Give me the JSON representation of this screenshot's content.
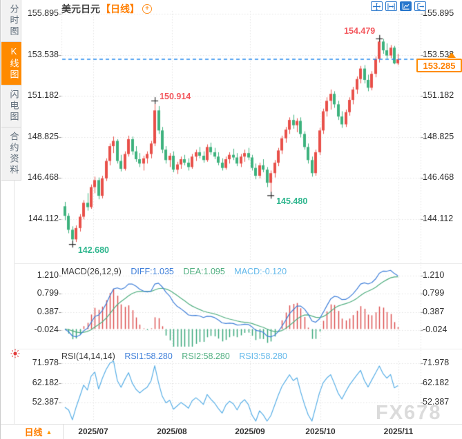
{
  "title": {
    "symbol": "美元日元",
    "period": "【日线】"
  },
  "toolbar": {
    "icons": [
      {
        "name": "crosshair-move-icon",
        "active": false
      },
      {
        "name": "axis-range-icon",
        "active": false
      },
      {
        "name": "chart-panel-icon",
        "active": true
      },
      {
        "name": "exit-chart-icon",
        "active": false
      }
    ]
  },
  "sidebar": {
    "items": [
      {
        "label": "分时图",
        "active": false
      },
      {
        "label": "K线图",
        "active": true
      },
      {
        "label": "闪电图",
        "active": false
      },
      {
        "label": "合约资料",
        "active": false
      }
    ]
  },
  "bottom_bar": {
    "period_label": "日线",
    "arrow": "▲",
    "dates": [
      "2025/07",
      "2025/08",
      "2025/09",
      "2025/10",
      "2025/11"
    ]
  },
  "price_tag": {
    "value": "153.285"
  },
  "watermark": "FX678",
  "colors": {
    "up": "#e8504a",
    "down": "#3eb27e",
    "hist_up": "#dd5252",
    "hist_down": "#3aa87c",
    "diff_line": "#3f7fd9",
    "dea_line": "#4fae7f",
    "rsi_line": "#57aee6",
    "grid": "#e2e2e2",
    "tick": "#999999",
    "dashed_price_line": "#2288ee",
    "accent": "#ff7e00",
    "cross_marker": "#222222"
  },
  "chart_data": [
    {
      "type": "candlestick",
      "title": "美元日元 日线 (USD/JPY daily)",
      "y_ticks": [
        "155.895",
        "153.538",
        "151.182",
        "148.825",
        "146.468",
        "144.112"
      ],
      "x_labels": [
        "2025/07",
        "2025/08",
        "2025/09",
        "2025/10",
        "2025/11"
      ],
      "current_price": "153.285",
      "annotations": [
        {
          "label": "154.479",
          "candle": 84,
          "at": "high",
          "color": "#f3565c",
          "placement": "left-up"
        },
        {
          "label": "150.914",
          "candle": 24,
          "at": "high",
          "color": "#f3565c",
          "placement": "right-up"
        },
        {
          "label": "145.480",
          "candle": 55,
          "at": "low",
          "color": "#2fb68e",
          "placement": "right-down"
        },
        {
          "label": "142.680",
          "candle": 2,
          "at": "low",
          "color": "#2fb68e",
          "placement": "right-down"
        }
      ],
      "candles": [
        [
          144.85,
          145.1,
          144.05,
          144.3
        ],
        [
          144.3,
          144.45,
          143.3,
          143.5
        ],
        [
          143.5,
          143.7,
          142.68,
          142.95
        ],
        [
          142.95,
          143.75,
          142.8,
          143.6
        ],
        [
          143.6,
          144.4,
          143.4,
          144.25
        ],
        [
          144.25,
          145.2,
          144.1,
          145.05
        ],
        [
          145.05,
          145.6,
          144.6,
          144.8
        ],
        [
          144.8,
          146.1,
          144.7,
          145.95
        ],
        [
          145.95,
          146.55,
          145.6,
          146.35
        ],
        [
          146.35,
          146.5,
          145.25,
          145.45
        ],
        [
          145.45,
          146.6,
          145.3,
          146.45
        ],
        [
          146.45,
          147.6,
          146.3,
          147.45
        ],
        [
          147.45,
          148.45,
          147.2,
          148.3
        ],
        [
          148.3,
          148.85,
          147.9,
          148.6
        ],
        [
          148.6,
          148.7,
          147.3,
          147.45
        ],
        [
          147.45,
          147.8,
          146.85,
          147.0
        ],
        [
          147.0,
          148.0,
          146.9,
          147.85
        ],
        [
          147.85,
          148.9,
          147.7,
          148.7
        ],
        [
          148.7,
          148.85,
          147.8,
          148.0
        ],
        [
          148.0,
          148.3,
          147.4,
          147.55
        ],
        [
          147.55,
          147.9,
          147.1,
          147.3
        ],
        [
          147.3,
          147.75,
          146.9,
          147.6
        ],
        [
          147.6,
          148.0,
          147.3,
          147.85
        ],
        [
          147.85,
          148.6,
          147.6,
          148.45
        ],
        [
          148.45,
          150.914,
          148.3,
          150.35
        ],
        [
          150.35,
          150.6,
          149.0,
          149.2
        ],
        [
          149.2,
          149.4,
          147.9,
          148.1
        ],
        [
          148.1,
          148.3,
          147.3,
          147.5
        ],
        [
          147.5,
          147.9,
          147.1,
          147.75
        ],
        [
          147.75,
          148.0,
          146.8,
          146.95
        ],
        [
          146.95,
          147.4,
          146.7,
          147.25
        ],
        [
          147.25,
          147.7,
          147.0,
          147.55
        ],
        [
          147.55,
          147.8,
          147.2,
          147.35
        ],
        [
          147.35,
          147.6,
          146.9,
          147.1
        ],
        [
          147.1,
          147.85,
          147.0,
          147.7
        ],
        [
          147.7,
          148.1,
          147.45,
          147.95
        ],
        [
          147.95,
          148.25,
          147.6,
          147.75
        ],
        [
          147.75,
          148.0,
          147.35,
          147.5
        ],
        [
          147.5,
          148.4,
          147.4,
          148.25
        ],
        [
          148.25,
          148.5,
          147.8,
          147.95
        ],
        [
          147.95,
          148.2,
          147.55,
          147.7
        ],
        [
          147.7,
          147.95,
          147.2,
          147.35
        ],
        [
          147.35,
          147.6,
          146.9,
          147.05
        ],
        [
          147.05,
          147.7,
          146.95,
          147.55
        ],
        [
          147.55,
          147.95,
          147.3,
          147.8
        ],
        [
          147.8,
          148.15,
          147.5,
          147.65
        ],
        [
          147.65,
          147.9,
          147.15,
          147.3
        ],
        [
          147.3,
          147.85,
          147.1,
          147.7
        ],
        [
          147.7,
          148.1,
          147.4,
          147.9
        ],
        [
          147.9,
          148.2,
          147.5,
          147.65
        ],
        [
          147.65,
          147.8,
          146.9,
          147.05
        ],
        [
          147.05,
          147.3,
          146.4,
          146.6
        ],
        [
          146.6,
          147.35,
          146.45,
          147.2
        ],
        [
          147.2,
          147.55,
          146.8,
          146.95
        ],
        [
          146.95,
          147.1,
          145.95,
          146.2
        ],
        [
          146.2,
          146.9,
          145.48,
          146.75
        ],
        [
          146.75,
          147.5,
          146.5,
          147.35
        ],
        [
          147.35,
          148.2,
          147.15,
          148.05
        ],
        [
          148.05,
          148.9,
          147.85,
          148.75
        ],
        [
          148.75,
          149.4,
          148.5,
          149.25
        ],
        [
          149.25,
          149.95,
          149.0,
          149.8
        ],
        [
          149.8,
          150.1,
          149.3,
          149.5
        ],
        [
          149.5,
          149.9,
          149.1,
          149.75
        ],
        [
          149.75,
          149.95,
          148.8,
          149.0
        ],
        [
          149.0,
          149.15,
          148.1,
          148.25
        ],
        [
          148.25,
          148.45,
          147.3,
          147.5
        ],
        [
          147.5,
          147.7,
          146.55,
          146.75
        ],
        [
          146.75,
          148.1,
          146.6,
          147.95
        ],
        [
          147.95,
          149.35,
          147.8,
          149.2
        ],
        [
          149.2,
          150.45,
          149.0,
          150.3
        ],
        [
          150.3,
          151.1,
          150.0,
          150.9
        ],
        [
          150.9,
          151.55,
          150.4,
          151.3
        ],
        [
          151.3,
          151.45,
          150.5,
          150.7
        ],
        [
          150.7,
          150.9,
          149.8,
          150.0
        ],
        [
          150.0,
          150.3,
          149.35,
          149.55
        ],
        [
          149.55,
          150.4,
          149.4,
          150.25
        ],
        [
          150.25,
          151.1,
          150.05,
          150.95
        ],
        [
          150.95,
          151.7,
          150.7,
          151.55
        ],
        [
          151.55,
          152.3,
          151.3,
          152.15
        ],
        [
          152.15,
          152.9,
          151.9,
          152.75
        ],
        [
          152.75,
          152.95,
          151.9,
          152.1
        ],
        [
          152.1,
          152.4,
          151.45,
          151.65
        ],
        [
          151.65,
          152.6,
          151.5,
          152.45
        ],
        [
          152.45,
          153.45,
          152.25,
          153.3
        ],
        [
          153.3,
          154.479,
          153.1,
          154.3
        ],
        [
          154.3,
          154.45,
          153.6,
          153.8
        ],
        [
          153.8,
          154.2,
          153.3,
          153.5
        ],
        [
          153.5,
          154.1,
          153.35,
          153.95
        ],
        [
          153.95,
          154.05,
          153.0,
          153.05
        ],
        [
          153.05,
          153.6,
          152.95,
          153.285
        ]
      ]
    },
    {
      "type": "macd",
      "header": {
        "name": "MACD(26,12,9)",
        "diff": "DIFF:1.035",
        "dea": "DEA:1.095",
        "macd": "MACD:-0.120"
      },
      "y_ticks": [
        "1.210",
        "0.799",
        "0.387",
        "-0.024"
      ],
      "params": {
        "fast": 12,
        "slow": 26,
        "signal": 9
      }
    },
    {
      "type": "rsi",
      "header": {
        "name": "RSI(14,14,14)",
        "rsi1": "RSI1:58.280",
        "rsi2": "RSI2:58.280",
        "rsi3": "RSI3:58.280"
      },
      "y_ticks": [
        "71.978",
        "62.182",
        "52.387"
      ],
      "params": {
        "period": 14
      }
    }
  ]
}
